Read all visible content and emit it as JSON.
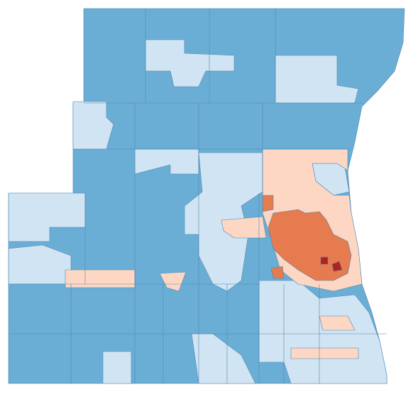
{
  "map": {
    "colors": [
      "#6aaed6",
      "#d0e4f4",
      "#fdd7c4",
      "#e57b4f",
      "#b4211b"
    ]
  }
}
